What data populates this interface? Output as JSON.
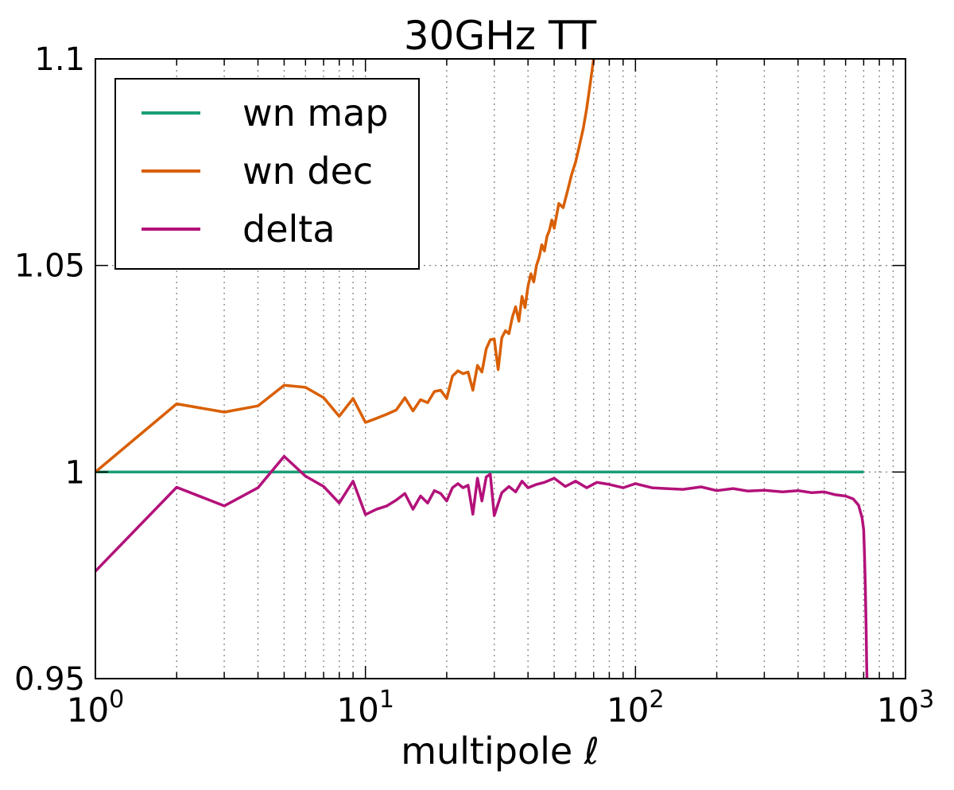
{
  "chart_data": {
    "type": "line",
    "title": "30GHz  TT",
    "xlabel": "multipole ℓ",
    "ylabel": "",
    "xscale": "log",
    "xlim": [
      1,
      1000
    ],
    "ylim": [
      0.95,
      1.1
    ],
    "grid": true,
    "legend_position": "top-left",
    "x_ticks": [
      {
        "value": 1,
        "base": "10",
        "exp": "0"
      },
      {
        "value": 10,
        "base": "10",
        "exp": "1"
      },
      {
        "value": 100,
        "base": "10",
        "exp": "2"
      },
      {
        "value": 1000,
        "base": "10",
        "exp": "3"
      }
    ],
    "y_ticks": [
      {
        "value": 0.95,
        "label": "0.95"
      },
      {
        "value": 1.0,
        "label": "1"
      },
      {
        "value": 1.05,
        "label": "1.05"
      },
      {
        "value": 1.1,
        "label": "1.1"
      }
    ],
    "series": [
      {
        "name": "wn map",
        "color": "#1b9e77",
        "x": [
          1,
          700
        ],
        "y": [
          1.0,
          1.0
        ]
      },
      {
        "name": "wn dec",
        "color": "#d95f02",
        "x": [
          1,
          2,
          3,
          4,
          5,
          6,
          7,
          8,
          9,
          10,
          11,
          12,
          13,
          14,
          15,
          16,
          17,
          18,
          19,
          20,
          21,
          22,
          23,
          24,
          25,
          26,
          27,
          28,
          29,
          30,
          31,
          32,
          33,
          34,
          35,
          36,
          37,
          38,
          39,
          40,
          41,
          42,
          43,
          44,
          45,
          46,
          47,
          48,
          49,
          50,
          52,
          54,
          56,
          58,
          60,
          62,
          64,
          66,
          68,
          70
        ],
        "y": [
          1.0,
          1.0165,
          1.0145,
          1.016,
          1.021,
          1.0205,
          1.018,
          1.0135,
          1.0178,
          1.012,
          1.013,
          1.014,
          1.015,
          1.018,
          1.0148,
          1.0175,
          1.0168,
          1.0195,
          1.0198,
          1.0178,
          1.0232,
          1.0245,
          1.0238,
          1.0242,
          1.0198,
          1.0258,
          1.0242,
          1.0298,
          1.032,
          1.0322,
          1.0248,
          1.0325,
          1.0342,
          1.0335,
          1.0375,
          1.04,
          1.0365,
          1.0425,
          1.0398,
          1.045,
          1.048,
          1.046,
          1.05,
          1.052,
          1.055,
          1.0535,
          1.057,
          1.0585,
          1.061,
          1.059,
          1.065,
          1.064,
          1.068,
          1.072,
          1.075,
          1.079,
          1.083,
          1.088,
          1.094,
          1.1
        ]
      },
      {
        "name": "delta",
        "color": "#b3117a",
        "x": [
          1,
          2,
          3,
          4,
          5,
          6,
          7,
          8,
          9,
          10,
          11,
          12,
          13,
          14,
          15,
          16,
          17,
          18,
          19,
          20,
          21,
          22,
          23,
          24,
          25,
          26,
          27,
          28,
          29,
          30,
          32,
          34,
          36,
          38,
          40,
          43,
          46,
          50,
          55,
          60,
          66,
          72,
          80,
          90,
          100,
          115,
          130,
          150,
          175,
          200,
          230,
          260,
          300,
          350,
          400,
          450,
          500,
          550,
          600,
          640,
          670,
          690,
          700,
          705,
          710,
          715,
          718,
          720
        ],
        "y": [
          0.976,
          0.9963,
          0.9918,
          0.9962,
          1.0038,
          0.999,
          0.9965,
          0.9925,
          0.9978,
          0.9897,
          0.991,
          0.9918,
          0.9932,
          0.9948,
          0.991,
          0.9942,
          0.9925,
          0.9955,
          0.9948,
          0.993,
          0.9962,
          0.9972,
          0.9962,
          0.9968,
          0.9898,
          0.9985,
          0.993,
          0.9988,
          0.9995,
          0.9895,
          0.995,
          0.9965,
          0.9952,
          0.9978,
          0.9962,
          0.997,
          0.9975,
          0.9985,
          0.9965,
          0.9978,
          0.9962,
          0.9975,
          0.997,
          0.9962,
          0.9972,
          0.9962,
          0.996,
          0.9958,
          0.9964,
          0.9955,
          0.996,
          0.9954,
          0.9956,
          0.9952,
          0.9955,
          0.995,
          0.9952,
          0.9945,
          0.9942,
          0.9935,
          0.992,
          0.989,
          0.986,
          0.98,
          0.972,
          0.962,
          0.954,
          0.95
        ]
      }
    ]
  }
}
